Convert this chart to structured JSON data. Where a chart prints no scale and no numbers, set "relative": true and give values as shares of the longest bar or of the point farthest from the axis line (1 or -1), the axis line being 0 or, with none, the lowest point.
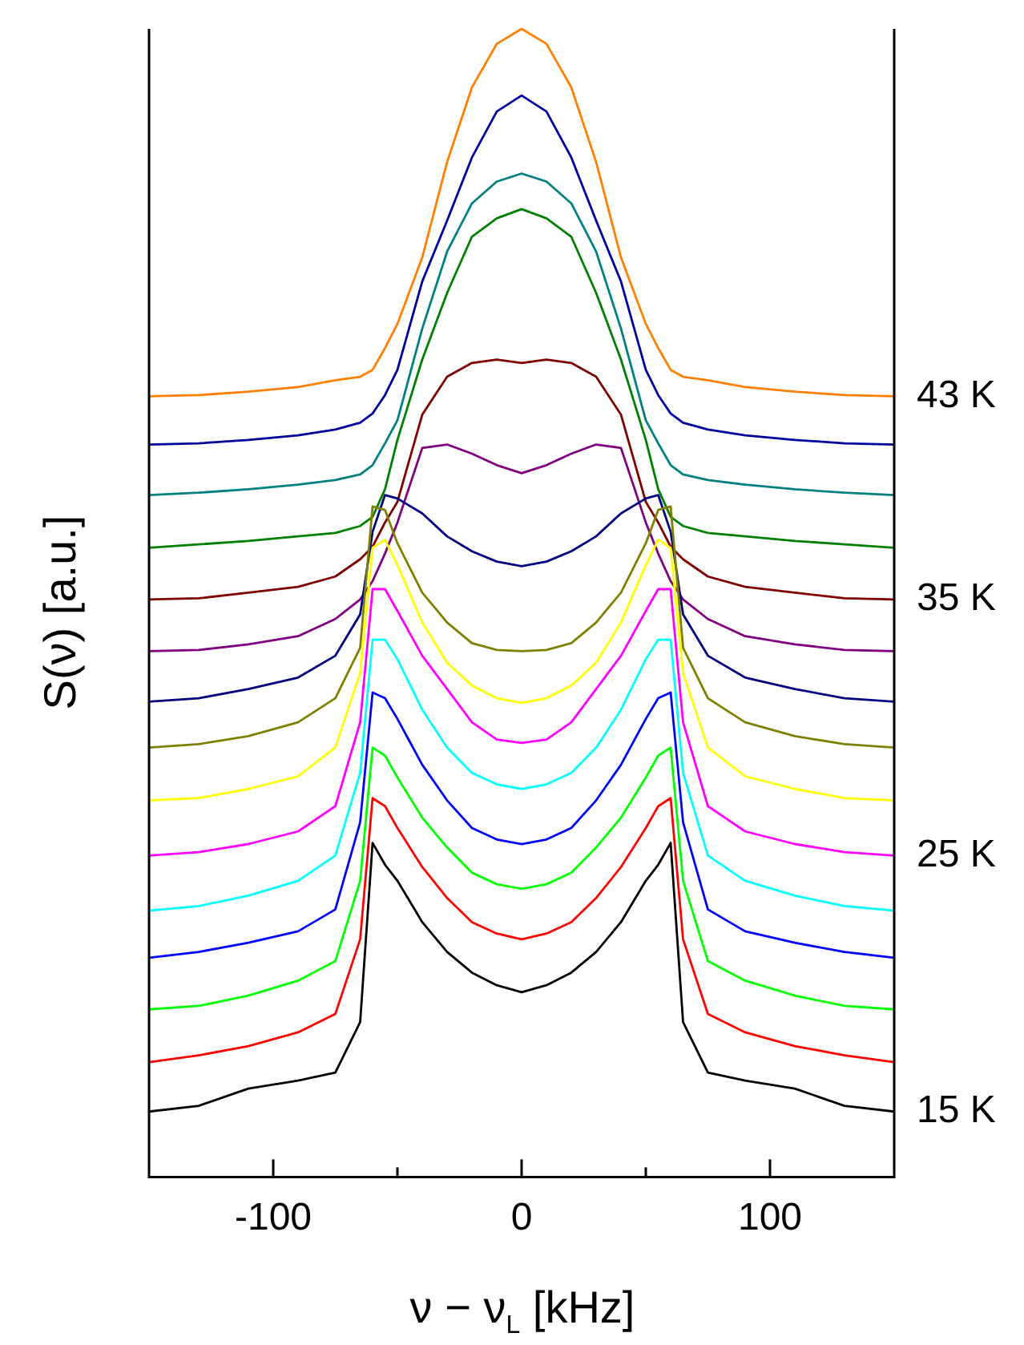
{
  "chart_data": {
    "type": "line",
    "xlabel": "ν − ν$_{L}$ [kHz]",
    "ylabel": "S(ν) [a.u.]",
    "relative": true,
    "marker": "none",
    "xlim": [
      -150,
      150
    ],
    "xticks": [
      -100,
      {
        "value": -50,
        "label": null
      },
      0,
      {
        "value": 50,
        "label": null
      },
      100
    ],
    "x": [
      -150,
      -130,
      -110,
      -90,
      -75,
      -65,
      -60,
      -55,
      -50,
      -40,
      -30,
      -20,
      -10,
      0,
      10,
      20,
      30,
      40,
      50,
      55,
      60,
      65,
      75,
      90,
      110,
      130,
      150
    ],
    "series": [
      {
        "name": "15 K",
        "color": "#000000",
        "values": [
          0.057,
          0.062,
          0.077,
          0.084,
          0.091,
          0.135,
          0.291,
          0.272,
          0.258,
          0.222,
          0.196,
          0.178,
          0.167,
          0.161,
          0.167,
          0.178,
          0.196,
          0.222,
          0.258,
          0.272,
          0.291,
          0.135,
          0.091,
          0.084,
          0.077,
          0.062,
          0.057
        ]
      },
      {
        "color": "#ff0000",
        "values": [
          0.1,
          0.106,
          0.114,
          0.126,
          0.142,
          0.207,
          0.33,
          0.323,
          0.304,
          0.27,
          0.243,
          0.222,
          0.212,
          0.207,
          0.212,
          0.222,
          0.243,
          0.27,
          0.304,
          0.323,
          0.33,
          0.207,
          0.142,
          0.126,
          0.114,
          0.106,
          0.1
        ]
      },
      {
        "color": "#00ff00",
        "values": [
          0.146,
          0.149,
          0.158,
          0.171,
          0.188,
          0.258,
          0.374,
          0.367,
          0.348,
          0.313,
          0.287,
          0.265,
          0.255,
          0.251,
          0.255,
          0.265,
          0.287,
          0.313,
          0.348,
          0.367,
          0.374,
          0.258,
          0.188,
          0.171,
          0.158,
          0.149,
          0.146
        ]
      },
      {
        "color": "#0000ff",
        "values": [
          0.191,
          0.196,
          0.204,
          0.214,
          0.233,
          0.309,
          0.422,
          0.417,
          0.399,
          0.359,
          0.328,
          0.304,
          0.294,
          0.29,
          0.294,
          0.304,
          0.328,
          0.359,
          0.399,
          0.417,
          0.422,
          0.309,
          0.233,
          0.214,
          0.204,
          0.196,
          0.191
        ]
      },
      {
        "color": "#00ffff",
        "values": [
          0.232,
          0.236,
          0.245,
          0.258,
          0.28,
          0.352,
          0.468,
          0.468,
          0.451,
          0.407,
          0.374,
          0.352,
          0.342,
          0.338,
          0.342,
          0.352,
          0.374,
          0.407,
          0.451,
          0.468,
          0.468,
          0.352,
          0.28,
          0.258,
          0.245,
          0.236,
          0.232
        ]
      },
      {
        "name": "25 K",
        "color": "#ff00ff",
        "values": [
          0.28,
          0.283,
          0.29,
          0.301,
          0.323,
          0.396,
          0.512,
          0.512,
          0.493,
          0.454,
          0.425,
          0.396,
          0.381,
          0.378,
          0.381,
          0.396,
          0.425,
          0.454,
          0.493,
          0.512,
          0.512,
          0.396,
          0.323,
          0.301,
          0.29,
          0.283,
          0.28
        ]
      },
      {
        "color": "#ffff00",
        "values": [
          0.328,
          0.33,
          0.338,
          0.349,
          0.374,
          0.439,
          0.548,
          0.555,
          0.533,
          0.483,
          0.448,
          0.428,
          0.417,
          0.413,
          0.417,
          0.428,
          0.448,
          0.483,
          0.533,
          0.555,
          0.548,
          0.439,
          0.374,
          0.349,
          0.338,
          0.33,
          0.328
        ]
      },
      {
        "color": "#808000",
        "values": [
          0.374,
          0.377,
          0.384,
          0.396,
          0.417,
          0.461,
          0.584,
          0.581,
          0.552,
          0.509,
          0.483,
          0.465,
          0.459,
          0.458,
          0.459,
          0.465,
          0.483,
          0.509,
          0.552,
          0.581,
          0.584,
          0.461,
          0.417,
          0.396,
          0.384,
          0.377,
          0.374
        ]
      },
      {
        "color": "#000080",
        "values": [
          0.414,
          0.417,
          0.425,
          0.435,
          0.454,
          0.49,
          0.562,
          0.594,
          0.591,
          0.578,
          0.558,
          0.545,
          0.536,
          0.532,
          0.536,
          0.545,
          0.558,
          0.578,
          0.591,
          0.594,
          0.562,
          0.49,
          0.454,
          0.435,
          0.425,
          0.417,
          0.414
        ]
      },
      {
        "color": "#800080",
        "values": [
          0.458,
          0.459,
          0.464,
          0.471,
          0.486,
          0.503,
          0.519,
          0.543,
          0.57,
          0.635,
          0.638,
          0.63,
          0.62,
          0.613,
          0.62,
          0.63,
          0.638,
          0.635,
          0.57,
          0.543,
          0.519,
          0.503,
          0.486,
          0.471,
          0.464,
          0.459,
          0.458
        ]
      },
      {
        "name": "35 K",
        "color": "#800000",
        "values": [
          0.503,
          0.504,
          0.509,
          0.514,
          0.523,
          0.538,
          0.549,
          0.57,
          0.588,
          0.664,
          0.697,
          0.709,
          0.712,
          0.709,
          0.712,
          0.709,
          0.697,
          0.664,
          0.588,
          0.57,
          0.549,
          0.538,
          0.523,
          0.514,
          0.509,
          0.504,
          0.503
        ]
      },
      {
        "color": "#008000",
        "values": [
          0.548,
          0.551,
          0.554,
          0.558,
          0.561,
          0.567,
          0.575,
          0.599,
          0.642,
          0.712,
          0.77,
          0.819,
          0.835,
          0.843,
          0.835,
          0.819,
          0.77,
          0.712,
          0.642,
          0.599,
          0.575,
          0.567,
          0.561,
          0.558,
          0.554,
          0.551,
          0.548
        ]
      },
      {
        "color": "#008080",
        "values": [
          0.594,
          0.596,
          0.599,
          0.603,
          0.607,
          0.612,
          0.62,
          0.639,
          0.659,
          0.739,
          0.806,
          0.848,
          0.867,
          0.874,
          0.867,
          0.848,
          0.806,
          0.739,
          0.659,
          0.639,
          0.62,
          0.612,
          0.607,
          0.603,
          0.599,
          0.596,
          0.594
        ]
      },
      {
        "color": "#0000a0",
        "values": [
          0.638,
          0.639,
          0.642,
          0.646,
          0.651,
          0.657,
          0.665,
          0.681,
          0.703,
          0.78,
          0.833,
          0.888,
          0.928,
          0.942,
          0.928,
          0.888,
          0.833,
          0.78,
          0.703,
          0.681,
          0.665,
          0.657,
          0.651,
          0.646,
          0.642,
          0.639,
          0.638
        ]
      },
      {
        "name": "43 K",
        "color": "#ff8000",
        "values": [
          0.68,
          0.681,
          0.684,
          0.688,
          0.694,
          0.697,
          0.703,
          0.722,
          0.743,
          0.801,
          0.884,
          0.949,
          0.987,
          1,
          0.987,
          0.949,
          0.884,
          0.801,
          0.743,
          0.722,
          0.703,
          0.697,
          0.694,
          0.688,
          0.684,
          0.681,
          0.68
        ]
      }
    ]
  }
}
